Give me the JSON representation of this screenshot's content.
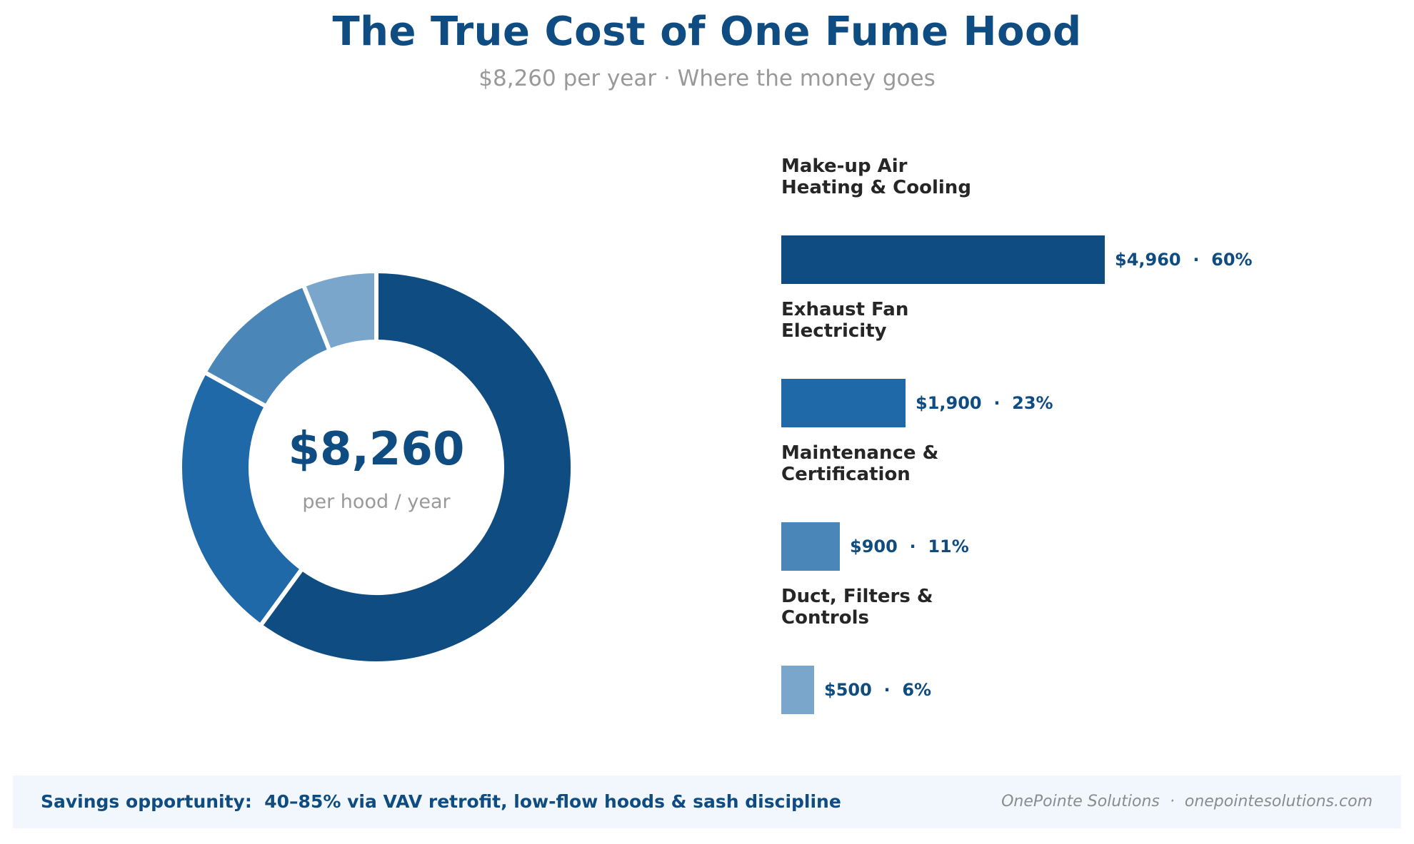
{
  "header": {
    "title": "The True Cost of One Fume Hood",
    "subtitle": "$8,260 per year  ·  Where the money goes"
  },
  "donut": {
    "center_value": "$8,260",
    "center_label": "per hood / year"
  },
  "bars": [
    {
      "label": "Make-up Air\nHeating & Cooling",
      "value_text": "$4,960  ·  60%"
    },
    {
      "label": "Exhaust Fan\nElectricity",
      "value_text": "$1,900  ·  23%"
    },
    {
      "label": "Maintenance &\nCertification",
      "value_text": "$900  ·  11%"
    },
    {
      "label": "Duct, Filters &\nControls",
      "value_text": "$500  ·  6%"
    }
  ],
  "footer": {
    "savings_text": "Savings opportunity:  40–85% via VAV retrofit, low-flow hoods & sash discipline",
    "credit_text": "OnePointe Solutions  ·  onepointesolutions.com"
  },
  "colors": {
    "accent": "#0f4c81",
    "segments": [
      "#0f4c81",
      "#1f69a8",
      "#4a87b8",
      "#7ba6cc"
    ],
    "footer_bg": "#f1f7fd"
  },
  "chart_data": [
    {
      "type": "pie",
      "subtype": "donut",
      "title": "The True Cost of One Fume Hood",
      "subtitle": "$8,260 per year · Where the money goes",
      "center_text": "$8,260 per hood / year",
      "start_angle": "12 o'clock, clockwise",
      "categories": [
        "Make-up Air Heating & Cooling",
        "Exhaust Fan Electricity",
        "Maintenance & Certification",
        "Duct, Filters & Controls"
      ],
      "values": [
        4960,
        1900,
        900,
        500
      ],
      "percent": [
        60,
        23,
        11,
        6
      ],
      "total": 8260,
      "colors": [
        "#0f4c81",
        "#1f69a8",
        "#4a87b8",
        "#7ba6cc"
      ]
    },
    {
      "type": "bar",
      "orientation": "horizontal",
      "categories": [
        "Make-up Air Heating & Cooling",
        "Exhaust Fan Electricity",
        "Maintenance & Certification",
        "Duct, Filters & Controls"
      ],
      "values": [
        4960,
        1900,
        900,
        500
      ],
      "data_labels": [
        "$4,960 · 60%",
        "$1,900 · 23%",
        "$900 · 11%",
        "$500 · 6%"
      ],
      "xlabel": "",
      "ylabel": "",
      "grid": false,
      "axes_visible": false
    }
  ]
}
